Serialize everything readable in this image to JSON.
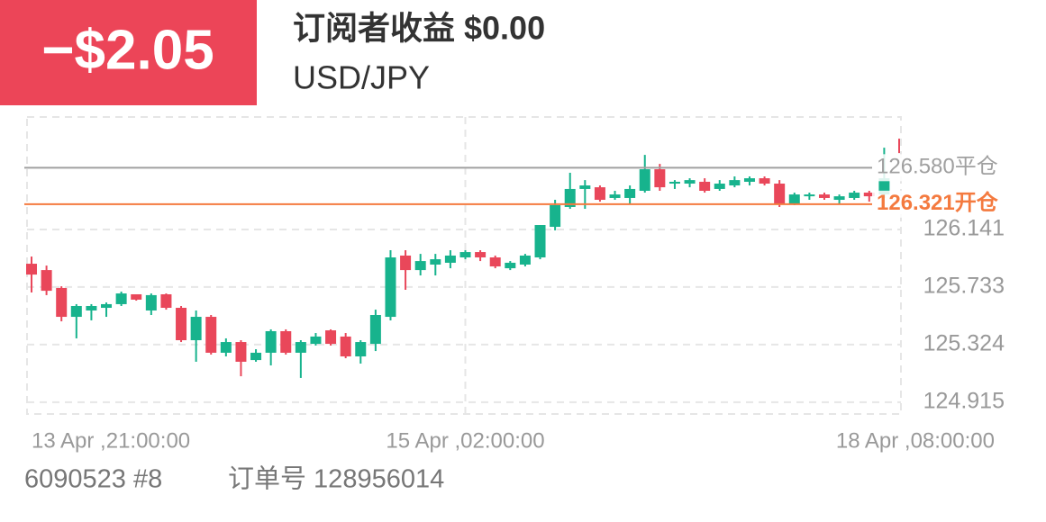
{
  "header": {
    "badge": "−$2.05",
    "title": "订阅者收益 $0.00",
    "symbol": "USD/JPY"
  },
  "chart_data": {
    "type": "candlestick",
    "categories": [
      "13 Apr ,21:00:00",
      null,
      null,
      null,
      null,
      null,
      null,
      null,
      null,
      null,
      null,
      null,
      null,
      null,
      null,
      null,
      null,
      null,
      null,
      null,
      null,
      null,
      null,
      null,
      null,
      null,
      null,
      null,
      null,
      "15 Apr ,02:00:00",
      null,
      null,
      null,
      null,
      null,
      null,
      null,
      null,
      null,
      null,
      null,
      null,
      null,
      null,
      null,
      null,
      null,
      null,
      null,
      null,
      null,
      null,
      null,
      null,
      null,
      null,
      null,
      null,
      "18 Apr ,08:00:00"
    ],
    "open": [
      125.898,
      125.853,
      125.726,
      125.521,
      125.566,
      125.585,
      125.611,
      125.681,
      125.566,
      125.681,
      125.585,
      125.355,
      125.521,
      125.266,
      125.342,
      125.214,
      125.266,
      125.419,
      125.266,
      125.329,
      125.425,
      125.381,
      125.24,
      125.329,
      125.521,
      125.956,
      125.853,
      125.892,
      125.905,
      125.943,
      125.981,
      125.943,
      125.866,
      125.892,
      125.943,
      126.16,
      126.301,
      126.429,
      126.441,
      126.365,
      126.365,
      126.416,
      126.569,
      126.467,
      126.467,
      126.48,
      126.429,
      126.454,
      126.48,
      126.505,
      126.467,
      126.326,
      126.377,
      126.39,
      126.352,
      126.365,
      126.403,
      126.39,
      126.774
    ],
    "high": [
      125.949,
      125.885,
      125.738,
      125.611,
      125.611,
      125.623,
      125.7,
      125.681,
      125.687,
      125.687,
      125.598,
      125.566,
      125.534,
      125.368,
      125.355,
      125.291,
      125.432,
      125.432,
      125.355,
      125.406,
      125.432,
      125.406,
      125.355,
      125.572,
      125.994,
      125.994,
      125.968,
      125.968,
      125.994,
      125.994,
      125.994,
      125.956,
      125.917,
      125.968,
      126.173,
      126.352,
      126.544,
      126.492,
      126.454,
      126.416,
      126.454,
      126.671,
      126.607,
      126.492,
      126.505,
      126.505,
      126.492,
      126.518,
      126.518,
      126.518,
      126.492,
      126.403,
      126.403,
      126.403,
      126.39,
      126.416,
      126.416,
      126.722,
      126.786
    ],
    "low": [
      125.694,
      125.675,
      125.489,
      125.368,
      125.496,
      125.521,
      125.598,
      125.636,
      125.534,
      125.572,
      125.342,
      125.202,
      125.253,
      125.24,
      125.099,
      125.202,
      125.176,
      125.253,
      125.087,
      125.317,
      125.317,
      125.227,
      125.189,
      125.278,
      125.496,
      125.713,
      125.815,
      125.815,
      125.866,
      125.93,
      125.917,
      125.866,
      125.853,
      125.879,
      125.93,
      126.135,
      126.288,
      126.288,
      126.339,
      126.352,
      126.326,
      126.403,
      126.416,
      126.429,
      126.441,
      126.403,
      126.416,
      126.441,
      126.454,
      126.454,
      126.301,
      126.314,
      126.352,
      126.352,
      126.326,
      126.352,
      126.339,
      126.365,
      126.684
    ],
    "close": [
      125.821,
      125.706,
      125.521,
      125.598,
      125.598,
      125.611,
      125.687,
      125.643,
      125.675,
      125.585,
      125.355,
      125.521,
      125.266,
      125.342,
      125.202,
      125.266,
      125.419,
      125.266,
      125.342,
      125.381,
      125.329,
      125.24,
      125.342,
      125.534,
      125.943,
      125.853,
      125.917,
      125.93,
      125.956,
      125.981,
      125.943,
      125.879,
      125.905,
      125.956,
      126.173,
      126.314,
      126.429,
      126.454,
      126.352,
      126.39,
      126.429,
      126.569,
      126.441,
      126.48,
      126.492,
      126.416,
      126.467,
      126.492,
      126.505,
      126.467,
      126.326,
      126.39,
      126.39,
      126.365,
      126.377,
      126.403,
      126.377,
      126.505,
      126.684
    ],
    "up_color": "#17b38d",
    "down_color": "#e9475a",
    "ylim": [
      124.831,
      126.94
    ],
    "yticks": [
      124.915,
      125.324,
      125.733,
      126.141
    ],
    "grid": true,
    "close_line": {
      "value": 126.58,
      "label": "126.580平仓",
      "color": "#a0a0a0"
    },
    "open_line": {
      "value": 126.321,
      "label": "126.321开仓",
      "color": "#f47a3f"
    }
  },
  "footer": {
    "account": "6090523 #8",
    "order": "订单号 128956014"
  }
}
